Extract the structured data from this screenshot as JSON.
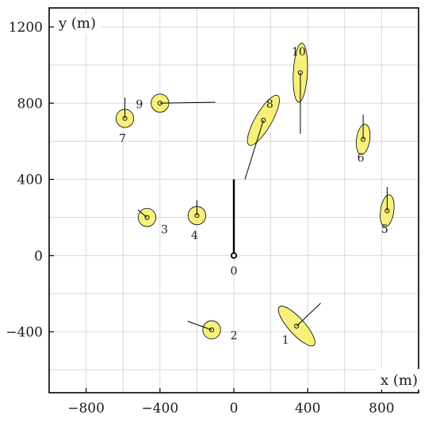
{
  "chart_data": {
    "type": "scatter",
    "title": "",
    "xlabel": "x (m)",
    "ylabel": "y (m)",
    "xlim": [
      -1000,
      1000
    ],
    "ylim": [
      -720,
      1300
    ],
    "grid": true,
    "x_ticks": [
      -800,
      -400,
      0,
      400,
      800
    ],
    "x_tick_labels": [
      "−800",
      "−400",
      "0",
      "400",
      "800"
    ],
    "y_ticks": [
      -400,
      0,
      400,
      800,
      1200
    ],
    "y_tick_labels": [
      "−400",
      "0",
      "400",
      "800",
      "1200"
    ],
    "colors": {
      "ellipse_fill": "#f7f07a",
      "stroke": "#000000",
      "grid": "#d9d9d9"
    },
    "origin": {
      "label": "0",
      "x": 0,
      "y": 0,
      "line_end": {
        "x": 0,
        "y": 400
      }
    },
    "points": [
      {
        "label": "1",
        "x": 340,
        "y": -370,
        "ellipse": {
          "rx": 140,
          "ry": 42,
          "angle": 48
        },
        "line_end": {
          "x": 470,
          "y": -250
        }
      },
      {
        "label": "2",
        "x": -120,
        "y": -390,
        "ellipse": {
          "rx": 48,
          "ry": 48,
          "angle": 0
        },
        "line_end": {
          "x": -250,
          "y": -345
        }
      },
      {
        "label": "3",
        "x": -470,
        "y": 200,
        "ellipse": {
          "rx": 48,
          "ry": 48,
          "angle": 0
        },
        "line_end": {
          "x": -520,
          "y": 240
        }
      },
      {
        "label": "4",
        "x": -200,
        "y": 210,
        "ellipse": {
          "rx": 48,
          "ry": 48,
          "angle": 0
        },
        "line_end": {
          "x": -200,
          "y": 290
        }
      },
      {
        "label": "5",
        "x": 830,
        "y": 235,
        "ellipse": {
          "rx": 36,
          "ry": 85,
          "angle": 8
        },
        "line_end": {
          "x": 830,
          "y": 360
        }
      },
      {
        "label": "6",
        "x": 700,
        "y": 610,
        "ellipse": {
          "rx": 36,
          "ry": 80,
          "angle": 8
        },
        "line_end": {
          "x": 700,
          "y": 740
        }
      },
      {
        "label": "7",
        "x": -590,
        "y": 720,
        "ellipse": {
          "rx": 48,
          "ry": 48,
          "angle": 0
        },
        "line_end": {
          "x": -590,
          "y": 830
        }
      },
      {
        "label": "8",
        "x": 160,
        "y": 710,
        "ellipse": {
          "rx": 45,
          "ry": 150,
          "angle": 30
        },
        "line_end": {
          "x": 60,
          "y": 400
        }
      },
      {
        "label": "9",
        "x": -400,
        "y": 800,
        "ellipse": {
          "rx": 48,
          "ry": 48,
          "angle": 0
        },
        "line_end": {
          "x": -100,
          "y": 805
        }
      },
      {
        "label": "10",
        "x": 360,
        "y": 960,
        "ellipse": {
          "rx": 38,
          "ry": 155,
          "angle": 3
        },
        "line_end": {
          "x": 360,
          "y": 640
        }
      }
    ]
  }
}
